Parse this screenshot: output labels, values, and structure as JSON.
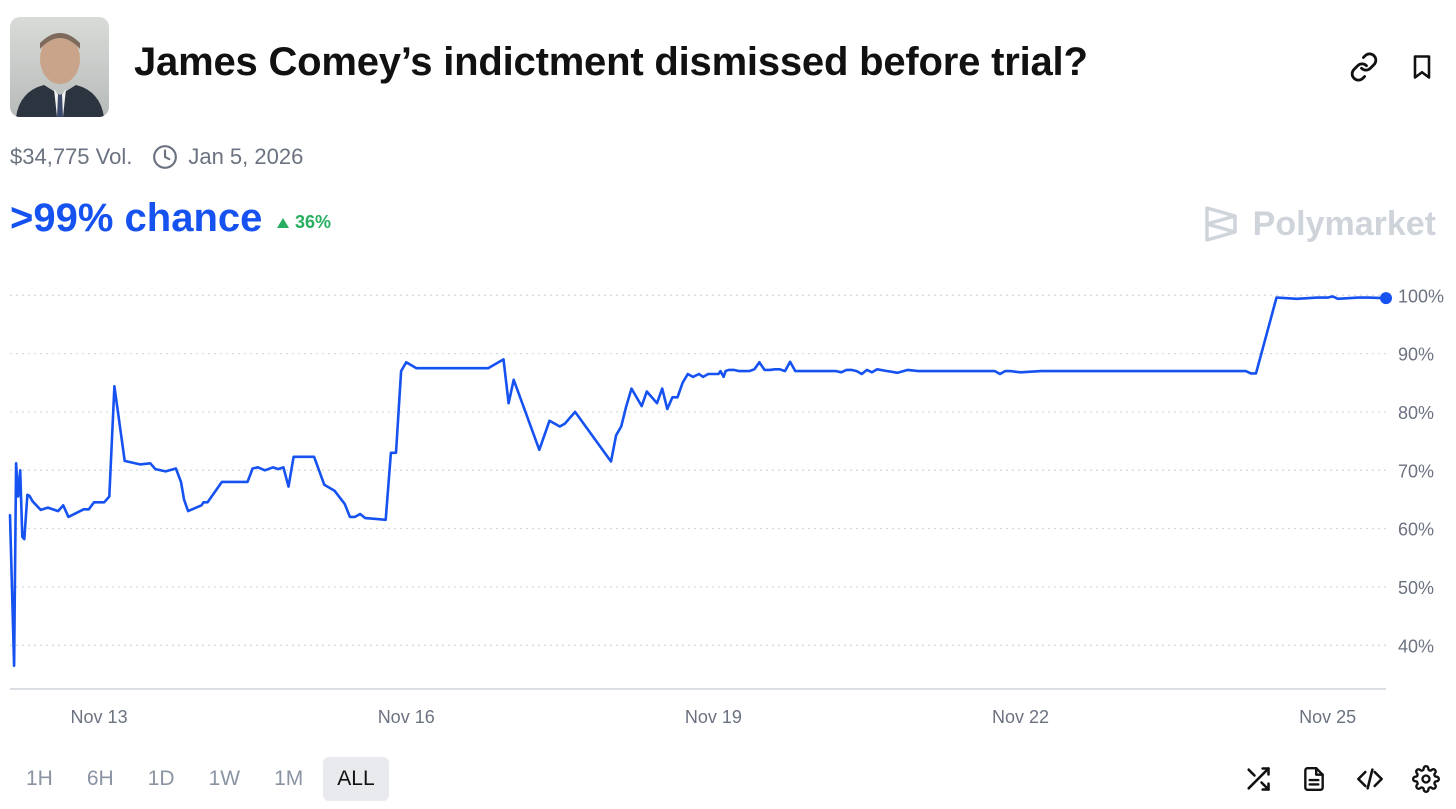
{
  "header": {
    "title": "James Comey’s indictment dismissed before trial?",
    "avatar_icon": "portrait-photo",
    "link_icon": "link-icon",
    "bookmark_icon": "bookmark-icon"
  },
  "meta": {
    "volume": "$34,775 Vol.",
    "date": "Jan 5, 2026"
  },
  "odds": {
    "chance_text": ">99% chance",
    "change_text": "36%",
    "change_direction": "up"
  },
  "brand": {
    "name": "Polymarket"
  },
  "colors": {
    "accent": "#1652f0",
    "positive": "#27ae60",
    "muted": "#6b7280",
    "brand_watermark": "#cfd4db"
  },
  "ranges": {
    "options": [
      "1H",
      "6H",
      "1D",
      "1W",
      "1M",
      "ALL"
    ],
    "selected": "ALL"
  },
  "chart_data": {
    "type": "line",
    "title": "",
    "xlabel": "",
    "ylabel": "",
    "x_unit": "days",
    "x_ticks": [
      {
        "x": 13,
        "label": "Nov 13"
      },
      {
        "x": 16,
        "label": "Nov 16"
      },
      {
        "x": 19,
        "label": "Nov 19"
      },
      {
        "x": 22,
        "label": "Nov 22"
      },
      {
        "x": 25,
        "label": "Nov 25"
      }
    ],
    "y_ticks": [
      100,
      90,
      80,
      70,
      60,
      50,
      40
    ],
    "y_tick_labels": [
      "100%",
      "90%",
      "80%",
      "70%",
      "60%",
      "50%",
      "40%"
    ],
    "xlim": [
      12.13,
      25.57
    ],
    "ylim": [
      32.5,
      100.9
    ],
    "grid": true,
    "grid_style": "dotted",
    "y_axis_side": "right",
    "series": [
      {
        "color": "#1652f0",
        "x": [
          12.13,
          12.17,
          12.19,
          12.21,
          12.23,
          12.25,
          12.27,
          12.3,
          12.32,
          12.35,
          12.43,
          12.5,
          12.6,
          12.65,
          12.7,
          12.85,
          12.9,
          12.95,
          13.05,
          13.1,
          13.15,
          13.25,
          13.4,
          13.5,
          13.55,
          13.65,
          13.75,
          13.8,
          13.83,
          13.87,
          14.0,
          14.02,
          14.06,
          14.2,
          14.25,
          14.35,
          14.45,
          14.5,
          14.55,
          14.62,
          14.7,
          14.75,
          14.8,
          14.85,
          14.9,
          14.95,
          15.0,
          15.1,
          15.2,
          15.3,
          15.4,
          15.45,
          15.5,
          15.55,
          15.6,
          15.8,
          15.85,
          15.9,
          15.95,
          16.0,
          16.1,
          16.2,
          16.5,
          16.8,
          16.95,
          17.0,
          17.05,
          17.3,
          17.35,
          17.4,
          17.5,
          17.55,
          17.65,
          18.0,
          18.05,
          18.1,
          18.15,
          18.2,
          18.3,
          18.35,
          18.45,
          18.5,
          18.55,
          18.6,
          18.65,
          18.7,
          18.75,
          18.8,
          18.86,
          18.9,
          18.95,
          19.0,
          19.05,
          19.07,
          19.1,
          19.12,
          19.15,
          19.2,
          19.25,
          19.35,
          19.4,
          19.45,
          19.5,
          19.55,
          19.6,
          19.65,
          19.7,
          19.75,
          19.8,
          19.85,
          19.9,
          19.95,
          20.0,
          20.05,
          20.1,
          20.2,
          20.25,
          20.3,
          20.35,
          20.4,
          20.45,
          20.5,
          20.55,
          20.6,
          20.7,
          20.8,
          20.9,
          21.0,
          21.05,
          21.1,
          21.2,
          21.3,
          21.5,
          21.6,
          21.7,
          21.75,
          21.8,
          21.85,
          21.9,
          22.0,
          22.2,
          22.3,
          22.4,
          22.45,
          22.5,
          22.6,
          22.7,
          22.8,
          23.0,
          23.2,
          23.5,
          23.8,
          24.0,
          24.2,
          24.25,
          24.3,
          24.5,
          24.7,
          24.9,
          25.0,
          25.05,
          25.1,
          25.2,
          25.3,
          25.4,
          25.57
        ],
        "y": [
          62.3,
          36.5,
          71.2,
          65.5,
          70.0,
          58.6,
          58.2,
          65.8,
          65.6,
          64.7,
          63.2,
          63.6,
          63.0,
          64.0,
          62.0,
          63.3,
          63.3,
          64.5,
          64.5,
          65.5,
          84.4,
          71.6,
          71.0,
          71.2,
          70.2,
          69.8,
          70.3,
          68.0,
          65.0,
          63.0,
          64.0,
          64.5,
          64.5,
          68.0,
          68.0,
          68.0,
          68.0,
          70.3,
          70.5,
          70.0,
          70.5,
          70.2,
          70.5,
          67.2,
          72.3,
          72.3,
          72.3,
          72.3,
          67.5,
          66.5,
          64.2,
          62.0,
          62.0,
          62.5,
          61.8,
          61.5,
          73.0,
          73.0,
          87.0,
          88.5,
          87.5,
          87.5,
          87.5,
          87.5,
          89.0,
          81.5,
          85.5,
          73.5,
          76.0,
          78.5,
          77.5,
          78.0,
          80.0,
          71.5,
          76.0,
          77.5,
          81.0,
          84.0,
          81.0,
          83.5,
          81.5,
          84.0,
          80.5,
          82.5,
          82.5,
          85.0,
          86.5,
          86.0,
          86.5,
          86.0,
          86.5,
          86.5,
          86.5,
          87.0,
          86.0,
          87.0,
          87.2,
          87.2,
          87.0,
          87.0,
          87.3,
          88.5,
          87.2,
          87.2,
          87.3,
          87.3,
          87.0,
          88.6,
          87.0,
          87.0,
          87.0,
          87.0,
          87.0,
          87.0,
          87.0,
          87.0,
          86.8,
          87.2,
          87.2,
          87.0,
          86.5,
          87.2,
          86.8,
          87.3,
          87.0,
          86.7,
          87.2,
          87.0,
          87.0,
          87.0,
          87.0,
          87.0,
          87.0,
          87.0,
          87.0,
          87.0,
          86.5,
          87.0,
          87.0,
          86.8,
          87.0,
          87.0,
          87.0,
          87.0,
          87.0,
          87.0,
          87.0,
          87.0,
          87.0,
          87.0,
          87.0,
          87.0,
          87.0,
          87.0,
          86.6,
          86.6,
          99.6,
          99.4,
          99.6,
          99.6,
          99.8,
          99.4,
          99.5,
          99.6,
          99.6,
          99.5
        ]
      }
    ],
    "end_marker": true
  }
}
